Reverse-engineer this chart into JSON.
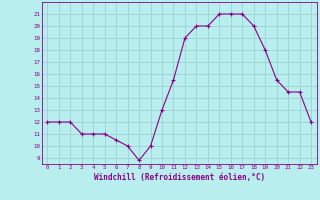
{
  "x": [
    0,
    1,
    2,
    3,
    4,
    5,
    6,
    7,
    8,
    9,
    10,
    11,
    12,
    13,
    14,
    15,
    16,
    17,
    18,
    19,
    20,
    21,
    22,
    23
  ],
  "y": [
    12,
    12,
    12,
    11,
    11,
    11,
    10.5,
    10,
    8.8,
    10,
    13,
    15.5,
    19,
    20,
    20,
    21,
    21,
    21,
    20,
    18,
    15.5,
    14.5,
    14.5,
    12
  ],
  "line_color": "#8b008b",
  "marker_color": "#8b008b",
  "bg_color": "#b8eeee",
  "grid_color": "#99cccc",
  "xlabel": "Windchill (Refroidissement éolien,°C)",
  "ylabel_ticks": [
    9,
    10,
    11,
    12,
    13,
    14,
    15,
    16,
    17,
    18,
    19,
    20,
    21
  ],
  "xticks": [
    0,
    1,
    2,
    3,
    4,
    5,
    6,
    7,
    8,
    9,
    10,
    11,
    12,
    13,
    14,
    15,
    16,
    17,
    18,
    19,
    20,
    21,
    22,
    23
  ],
  "ylim": [
    8.5,
    22.0
  ],
  "xlim": [
    -0.5,
    23.5
  ]
}
